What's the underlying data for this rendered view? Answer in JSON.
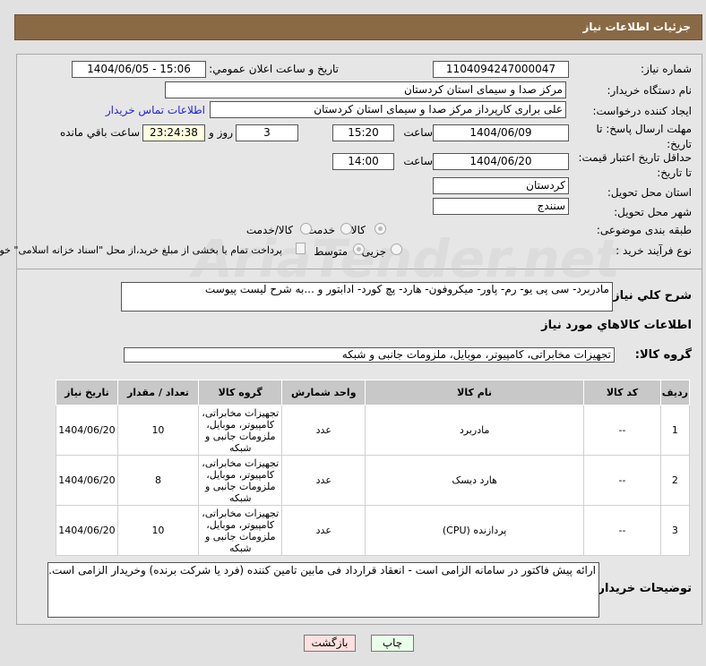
{
  "header": {
    "title": "جزئیات اطلاعات نیاز"
  },
  "form": {
    "need_number_label": "شماره نیاز:",
    "need_number": "1104094247000047",
    "announce_label": "تاریخ و ساعت اعلان عمومي:",
    "announce_value": "1404/06/05 - 15:06",
    "buyer_org_label": "نام دستگاه خریدار:",
    "buyer_org": "مرکز صدا و سیمای استان کردستان",
    "creator_label": "ایجاد کننده درخواست:",
    "creator": "علی براری کارپرداز مرکز صدا و سیمای استان کردستان",
    "contact_link": "اطلاعات تماس خریدار",
    "deadline_label": "مهلت ارسال پاسخ: تا تاریخ:",
    "deadline_date": "1404/06/09",
    "time_label": "ساعت",
    "deadline_time": "15:20",
    "days": "3",
    "days_label": "روز و",
    "remaining": "23:24:38",
    "remaining_label": "ساعت باقي مانده",
    "validity_label": "حداقل تاریخ اعتبار قیمت: تا تاریخ:",
    "validity_date": "1404/06/20",
    "validity_time": "14:00",
    "province_label": "استان محل تحویل:",
    "province": "کردستان",
    "city_label": "شهر محل تحویل:",
    "city": "سنندج",
    "category_label": "طبقه بندی موضوعی:",
    "category_options": [
      "کالا",
      "خدمت",
      "کالا/خدمت"
    ],
    "category_selected": "کالا",
    "process_label": "نوع فرآیند خرید :",
    "process_options": [
      "جزیی",
      "متوسط"
    ],
    "process_selected": "متوسط",
    "treasury_text": "پرداخت تمام یا بخشی از مبلغ خرید،از محل \"اسناد خزانه اسلامی\" خواهد بود."
  },
  "details": {
    "description_label": "شرح کلي نياز:",
    "description": "مادربرد- سی پی یو- رم- پاور- میکروفون- هارد- پچ کورد- ادابتور و ...به شرح لیست پیوست",
    "goods_info_title": "اطلاعات کالاهاي مورد نياز",
    "goods_group_label": "گروه کالا:",
    "goods_group": "تجهیزات مخابراتی، کامپیوتر، موبایل، ملزومات جانبی و شبکه"
  },
  "table": {
    "columns": [
      "ردیف",
      "کد کالا",
      "نام کالا",
      "واحد شمارش",
      "گروه کالا",
      "تعداد / مقدار",
      "تاریخ نیاز"
    ],
    "rows": [
      {
        "index": "1",
        "code": "--",
        "name": "مادربرد",
        "unit": "عدد",
        "group": "تجهیزات مخابراتی، کامپیوتر، موبایل، ملزومات جانبی و شبکه",
        "qty": "10",
        "date": "1404/06/20"
      },
      {
        "index": "2",
        "code": "--",
        "name": "هارد دیسک",
        "unit": "عدد",
        "group": "تجهیزات مخابراتی، کامپیوتر، موبایل، ملزومات جانبی و شبکه",
        "qty": "8",
        "date": "1404/06/20"
      },
      {
        "index": "3",
        "code": "--",
        "name": "پردازنده (CPU)",
        "unit": "عدد",
        "group": "تجهیزات مخابراتی، کامپیوتر، موبایل، ملزومات جانبی و شبکه",
        "qty": "10",
        "date": "1404/06/20"
      }
    ]
  },
  "notes": {
    "label": "توضیحات خریدار:",
    "text": "ارائه پیش فاکتور در سامانه الزامی است - انعقاد قرارداد فی مابین تامین کننده (فرد یا شرکت برنده) وخریدار الزامی است."
  },
  "buttons": {
    "print": "چاپ",
    "back": "بازگشت"
  },
  "watermark": "AriaTender.net"
}
